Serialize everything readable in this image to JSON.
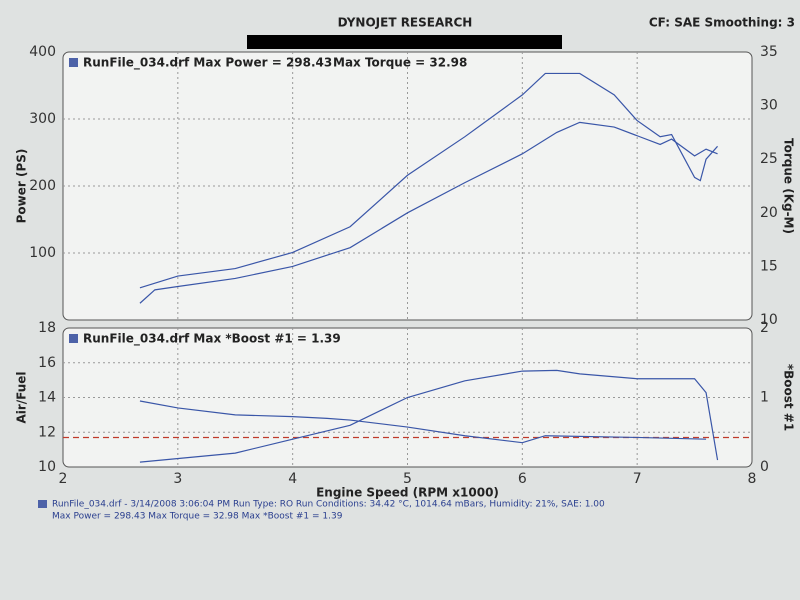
{
  "header": {
    "title": "DYNOJET RESEARCH",
    "settings": "CF: SAE  Smoothing: 3"
  },
  "chart_data": [
    {
      "type": "line",
      "annotations": [
        "RunFile_034.drf Max Power = 298.43",
        "Max Torque = 32.98"
      ],
      "ylabel": "Power (PS)",
      "y2label": "Torque (Kg-M)",
      "xlim": [
        2,
        8
      ],
      "xticks": [
        2,
        3,
        4,
        5,
        6,
        7,
        8
      ],
      "ylim": [
        0,
        400
      ],
      "yticks": [
        100,
        200,
        300,
        400
      ],
      "y2lim": [
        10,
        35
      ],
      "y2ticks": [
        10,
        15,
        20,
        25,
        30,
        35
      ],
      "grid": true,
      "series": [
        {
          "color": "#3a56a8",
          "x": [
            2.67,
            2.8,
            3.0,
            3.5,
            4.0,
            4.5,
            5.0,
            5.5,
            6.0,
            6.3,
            6.5,
            6.8,
            7.0,
            7.2,
            7.3,
            7.5,
            7.6,
            7.7
          ],
          "values": [
            25,
            45,
            50,
            62,
            80,
            108,
            160,
            205,
            248,
            280,
            295,
            288,
            275,
            262,
            270,
            245,
            255,
            248
          ]
        },
        {
          "color": "#3a56a8",
          "axis": "y2",
          "x": [
            2.67,
            3.0,
            3.5,
            4.0,
            4.5,
            5.0,
            5.5,
            6.0,
            6.2,
            6.5,
            6.8,
            7.0,
            7.2,
            7.3,
            7.5,
            7.55,
            7.6,
            7.7
          ],
          "values": [
            13,
            14.1,
            14.8,
            16.3,
            18.7,
            23.5,
            27.1,
            31,
            33,
            33,
            31,
            28.6,
            27.1,
            27.3,
            23.3,
            23,
            25,
            26.2
          ]
        }
      ]
    },
    {
      "type": "line",
      "annotations": [
        "RunFile_034.drf Max *Boost #1 = 1.39"
      ],
      "xlabel": "Engine Speed (RPM x1000)",
      "ylabel": "Air/Fuel",
      "y2label": "*Boost #1",
      "xlim": [
        2,
        8
      ],
      "xticks": [
        2,
        3,
        4,
        5,
        6,
        7,
        8
      ],
      "ylim": [
        10,
        18
      ],
      "yticks": [
        10,
        12,
        14,
        16,
        18
      ],
      "y2lim": [
        0,
        2
      ],
      "y2ticks": [
        0,
        1,
        2
      ],
      "grid": true,
      "reference_line": {
        "value": 11.7,
        "color": "#c0392b"
      },
      "series": [
        {
          "color": "#3a56a8",
          "x": [
            2.67,
            3.0,
            3.5,
            4.0,
            4.3,
            4.5,
            5.0,
            5.5,
            6.0,
            6.2,
            7.0,
            7.6
          ],
          "values": [
            13.8,
            13.4,
            13.0,
            12.9,
            12.8,
            12.7,
            12.3,
            11.8,
            11.4,
            11.8,
            11.7,
            11.6
          ]
        },
        {
          "color": "#3a56a8",
          "axis": "y2",
          "x": [
            2.67,
            3.5,
            4.0,
            4.5,
            5.0,
            5.5,
            6.0,
            6.3,
            6.5,
            7.0,
            7.5,
            7.6,
            7.7
          ],
          "values": [
            0.07,
            0.2,
            0.4,
            0.6,
            1.0,
            1.24,
            1.38,
            1.39,
            1.34,
            1.27,
            1.27,
            1.07,
            0.1
          ]
        }
      ]
    }
  ],
  "footer": {
    "lines": [
      "RunFile_034.drf - 3/14/2008 3:06:04 PM  Run Type: RO  Run Conditions: 34.42 °C, 1014.64 mBars,  Humidity: 21%, SAE: 1.00",
      "Max Power = 298.43  Max Torque = 32.98  Max *Boost #1 = 1.39"
    ]
  }
}
